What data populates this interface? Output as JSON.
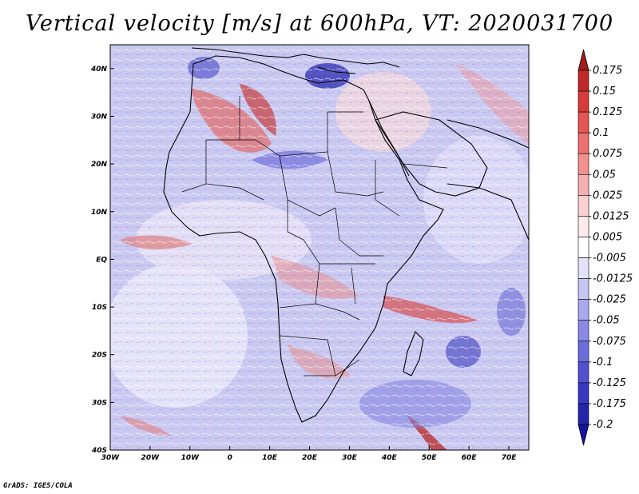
{
  "title": "Vertical velocity [m/s] at 600hPa, VT: 2020031700",
  "footer": "GrADS: IGES/COLA",
  "map": {
    "lon_range": [
      -30,
      75
    ],
    "lat_range": [
      -40,
      45
    ],
    "lon_ticks": [
      {
        "value": -30,
        "label": "30W"
      },
      {
        "value": -20,
        "label": "20W"
      },
      {
        "value": -10,
        "label": "10W"
      },
      {
        "value": 0,
        "label": "0"
      },
      {
        "value": 10,
        "label": "10E"
      },
      {
        "value": 20,
        "label": "20E"
      },
      {
        "value": 30,
        "label": "30E"
      },
      {
        "value": 40,
        "label": "40E"
      },
      {
        "value": 50,
        "label": "50E"
      },
      {
        "value": 60,
        "label": "60E"
      },
      {
        "value": 70,
        "label": "70E"
      }
    ],
    "lat_ticks": [
      {
        "value": 40,
        "label": "40N"
      },
      {
        "value": 30,
        "label": "30N"
      },
      {
        "value": 20,
        "label": "20N"
      },
      {
        "value": 10,
        "label": "10N"
      },
      {
        "value": 0,
        "label": "EQ"
      },
      {
        "value": -10,
        "label": "10S"
      },
      {
        "value": -20,
        "label": "20S"
      },
      {
        "value": -30,
        "label": "30S"
      },
      {
        "value": -40,
        "label": "40S"
      }
    ]
  },
  "colorbar": {
    "labels": [
      "0.175",
      "0.15",
      "0.125",
      "0.1",
      "0.075",
      "0.05",
      "0.025",
      "0.0125",
      "0.005",
      "-0.005",
      "-0.0125",
      "-0.025",
      "-0.05",
      "-0.075",
      "-0.1",
      "-0.125",
      "-0.175",
      "-0.2"
    ],
    "colors": [
      "#a01c1c",
      "#c22828",
      "#d83a3a",
      "#e65454",
      "#ee7070",
      "#f29090",
      "#f6b0b0",
      "#fad0d0",
      "#fdeaea",
      "#ffffff",
      "#e2e2fa",
      "#c6c6f4",
      "#a8a8ee",
      "#8a8ae6",
      "#6c6cdc",
      "#5050d0",
      "#3838c0",
      "#2424a8",
      "#1414a0"
    ]
  }
}
